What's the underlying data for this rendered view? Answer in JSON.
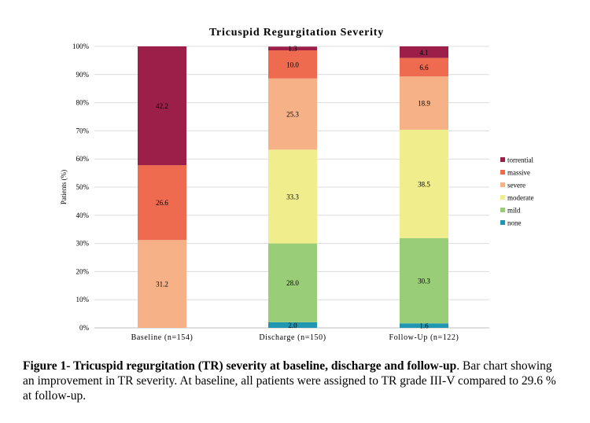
{
  "chart_data": {
    "type": "bar",
    "stacked": true,
    "title": "Tricuspid Regurgitation Severity",
    "xlabel": "",
    "ylabel": "Patients (%)",
    "ylim": [
      0,
      100
    ],
    "yticks": [
      "0%",
      "10%",
      "20%",
      "30%",
      "40%",
      "50%",
      "60%",
      "70%",
      "80%",
      "90%",
      "100%"
    ],
    "grid": true,
    "legend_position": "right",
    "categories": [
      "Baseline (n=154)",
      "Discharge (n=150)",
      "Follow-Up (n=122)"
    ],
    "series": [
      {
        "name": "none",
        "color": "#2196b0",
        "values": [
          0,
          2.0,
          1.6
        ],
        "labels": [
          "0",
          "2.0",
          "1.6"
        ]
      },
      {
        "name": "mild",
        "color": "#9acd77",
        "values": [
          0,
          28.0,
          30.3
        ],
        "labels": [
          "",
          "28.0",
          "30.3"
        ]
      },
      {
        "name": "moderate",
        "color": "#f0ee8c",
        "values": [
          0,
          33.3,
          38.5
        ],
        "labels": [
          "",
          "33.3",
          "38.5"
        ]
      },
      {
        "name": "severe",
        "color": "#f6b286",
        "values": [
          31.2,
          25.3,
          18.9
        ],
        "labels": [
          "31.2",
          "25.3",
          "18.9"
        ]
      },
      {
        "name": "massive",
        "color": "#ee6b50",
        "values": [
          26.6,
          10.0,
          6.6
        ],
        "labels": [
          "26.6",
          "10.0",
          "6.6"
        ]
      },
      {
        "name": "torrential",
        "color": "#9b1f48",
        "values": [
          42.2,
          1.3,
          4.1
        ],
        "labels": [
          "42.2",
          "1.3",
          "4.1"
        ]
      }
    ],
    "legend_order": [
      "torrential",
      "massive",
      "severe",
      "moderate",
      "mild",
      "none"
    ]
  },
  "caption": {
    "bold": "Figure 1- Tricuspid regurgitation (TR) severity at baseline, discharge and follow-up",
    "text": ". Bar chart showing an improvement in TR severity. At baseline, all patients were assigned to TR grade III-V compared to 29.6 % at follow-up."
  }
}
